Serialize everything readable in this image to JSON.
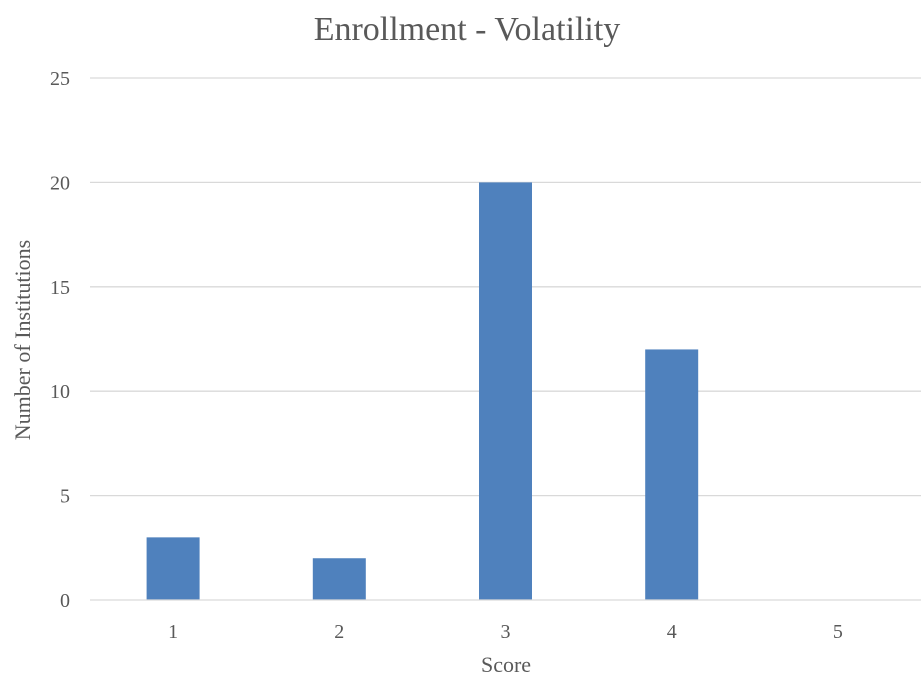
{
  "chart_data": {
    "type": "bar",
    "title": "Enrollment - Volatility",
    "xlabel": "Score",
    "ylabel": "Number of Institutions",
    "categories": [
      "1",
      "2",
      "3",
      "4",
      "5"
    ],
    "values": [
      3,
      2,
      20,
      12,
      0
    ],
    "ylim": [
      0,
      25
    ],
    "yticks": [
      "0",
      "5",
      "10",
      "15",
      "20",
      "25"
    ],
    "grid": true,
    "legend": "none",
    "colors": {
      "bar": "#4f81bd",
      "grid": "#d9d9d9",
      "text": "#595959"
    }
  }
}
